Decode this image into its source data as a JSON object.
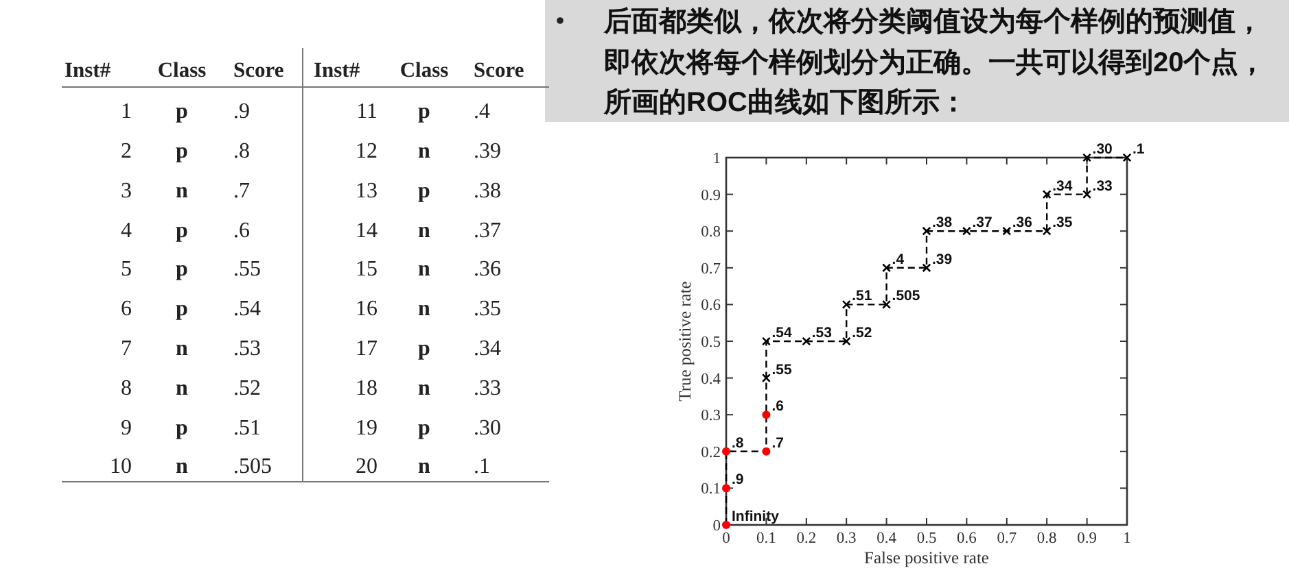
{
  "chart_data": {
    "type": "line",
    "title": "后面都类似，依次将分类阈值设为每个样例的预测值，即依次将每个样例划分为正确。一共可以得到20个点，所画的ROC曲线如下图所示：",
    "xlabel": "False positive rate",
    "ylabel": "True positive rate",
    "xlim": [
      0,
      1
    ],
    "ylim": [
      0,
      1
    ],
    "xticks": [
      0,
      0.1,
      0.2,
      0.3,
      0.4,
      0.5,
      0.6,
      0.7,
      0.8,
      0.9,
      1
    ],
    "yticks": [
      0,
      0.1,
      0.2,
      0.3,
      0.4,
      0.5,
      0.6,
      0.7,
      0.8,
      0.9,
      1
    ],
    "series": [
      {
        "type": "line",
        "color": "#000000",
        "line_style": "dashed",
        "marker": "none",
        "x": [
          0,
          0,
          0,
          0.1,
          0.1,
          0.1,
          0.1,
          0.2,
          0.3,
          0.3,
          0.4,
          0.4,
          0.5,
          0.5,
          0.6,
          0.7,
          0.8,
          0.8,
          0.9,
          0.9,
          1
        ],
        "values": [
          0,
          0.1,
          0.2,
          0.2,
          0.3,
          0.4,
          0.5,
          0.5,
          0.5,
          0.6,
          0.6,
          0.7,
          0.7,
          0.8,
          0.8,
          0.8,
          0.8,
          0.9,
          0.9,
          1,
          1
        ]
      },
      {
        "type": "scatter",
        "color": "#ff0000",
        "marker": "circle",
        "x": [
          0,
          0,
          0,
          0.1,
          0.1
        ],
        "values": [
          0,
          0.1,
          0.2,
          0.2,
          0.3
        ]
      },
      {
        "type": "scatter",
        "color": "#000000",
        "marker": "cross",
        "x": [
          0.1,
          0.1,
          0.2,
          0.3,
          0.3,
          0.4,
          0.4,
          0.5,
          0.5,
          0.6,
          0.7,
          0.8,
          0.8,
          0.9,
          0.9,
          1
        ],
        "values": [
          0.4,
          0.5,
          0.5,
          0.5,
          0.6,
          0.6,
          0.7,
          0.7,
          0.8,
          0.8,
          0.8,
          0.8,
          0.9,
          0.9,
          1,
          1
        ]
      }
    ],
    "annotations": [
      {
        "text": "Infinity",
        "x": 0,
        "y": 0
      },
      {
        "text": ".9",
        "x": 0,
        "y": 0.1
      },
      {
        "text": ".8",
        "x": 0,
        "y": 0.2
      },
      {
        "text": ".7",
        "x": 0.1,
        "y": 0.2
      },
      {
        "text": ".6",
        "x": 0.1,
        "y": 0.3
      },
      {
        "text": ".55",
        "x": 0.1,
        "y": 0.4
      },
      {
        "text": ".54",
        "x": 0.1,
        "y": 0.5
      },
      {
        "text": ".53",
        "x": 0.2,
        "y": 0.5
      },
      {
        "text": ".52",
        "x": 0.3,
        "y": 0.5
      },
      {
        "text": ".51",
        "x": 0.3,
        "y": 0.6
      },
      {
        "text": ".505",
        "x": 0.4,
        "y": 0.6
      },
      {
        "text": ".4",
        "x": 0.4,
        "y": 0.7
      },
      {
        "text": ".39",
        "x": 0.5,
        "y": 0.7
      },
      {
        "text": ".38",
        "x": 0.5,
        "y": 0.8
      },
      {
        "text": ".37",
        "x": 0.6,
        "y": 0.8
      },
      {
        "text": ".36",
        "x": 0.7,
        "y": 0.8
      },
      {
        "text": ".35",
        "x": 0.8,
        "y": 0.8
      },
      {
        "text": ".34",
        "x": 0.8,
        "y": 0.9
      },
      {
        "text": ".33",
        "x": 0.9,
        "y": 0.9
      },
      {
        "text": ".30",
        "x": 0.9,
        "y": 1
      },
      {
        "text": ".1",
        "x": 1,
        "y": 1
      },
      "Inst#",
      "Class",
      "Score",
      "Inst#",
      "Class",
      "Score",
      "1",
      "p",
      ".9",
      "11",
      "p",
      ".4",
      "2",
      "p",
      ".8",
      "12",
      "n",
      ".39",
      "3",
      "n",
      ".7",
      "13",
      "p",
      ".38",
      "4",
      "p",
      ".6",
      "14",
      "n",
      ".37",
      "5",
      "p",
      ".55",
      "15",
      "n",
      ".36",
      "6",
      "p",
      ".54",
      "16",
      "n",
      ".35",
      "7",
      "n",
      ".53",
      "17",
      "p",
      ".34",
      "8",
      "n",
      ".52",
      "18",
      "n",
      ".33",
      "9",
      "p",
      ".51",
      "19",
      "p",
      ".30",
      "10",
      "n",
      ".505",
      "20",
      "n",
      ".1"
    ]
  }
}
